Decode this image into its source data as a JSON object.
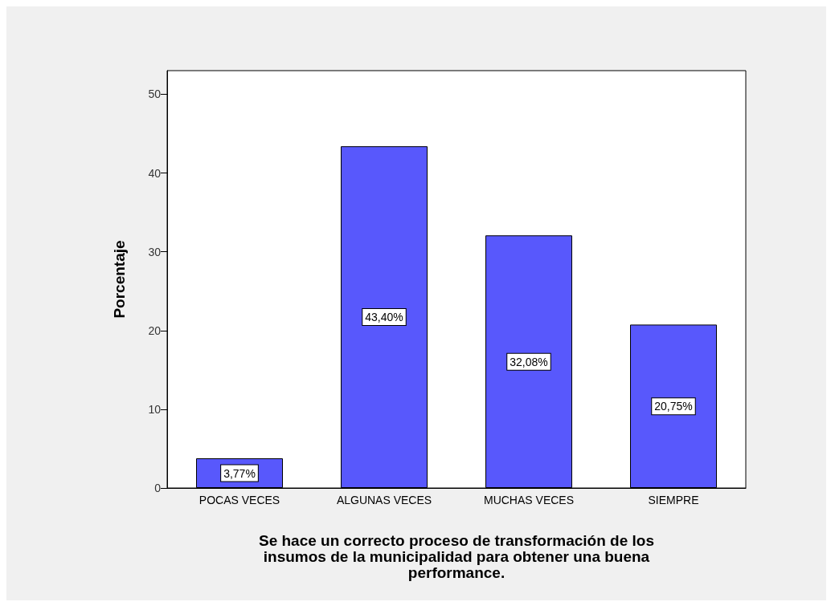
{
  "chart_data": {
    "type": "bar",
    "xlabel": "Se hace un correcto proceso de transformación de los\ninsumos de la municipalidad para obtener una buena\nperformance.",
    "ylabel": "Porcentaje",
    "categories": [
      "POCAS VECES",
      "ALGUNAS VECES",
      "MUCHAS VECES",
      "SIEMPRE"
    ],
    "values": [
      3.77,
      43.4,
      32.08,
      20.75
    ],
    "value_labels": [
      "3,77%",
      "43,40%",
      "32,08%",
      "20,75%"
    ],
    "color": "#5858fc",
    "ylim": [
      0,
      53
    ],
    "yticks": [
      0,
      10,
      20,
      30,
      40,
      50
    ],
    "grid": false
  }
}
